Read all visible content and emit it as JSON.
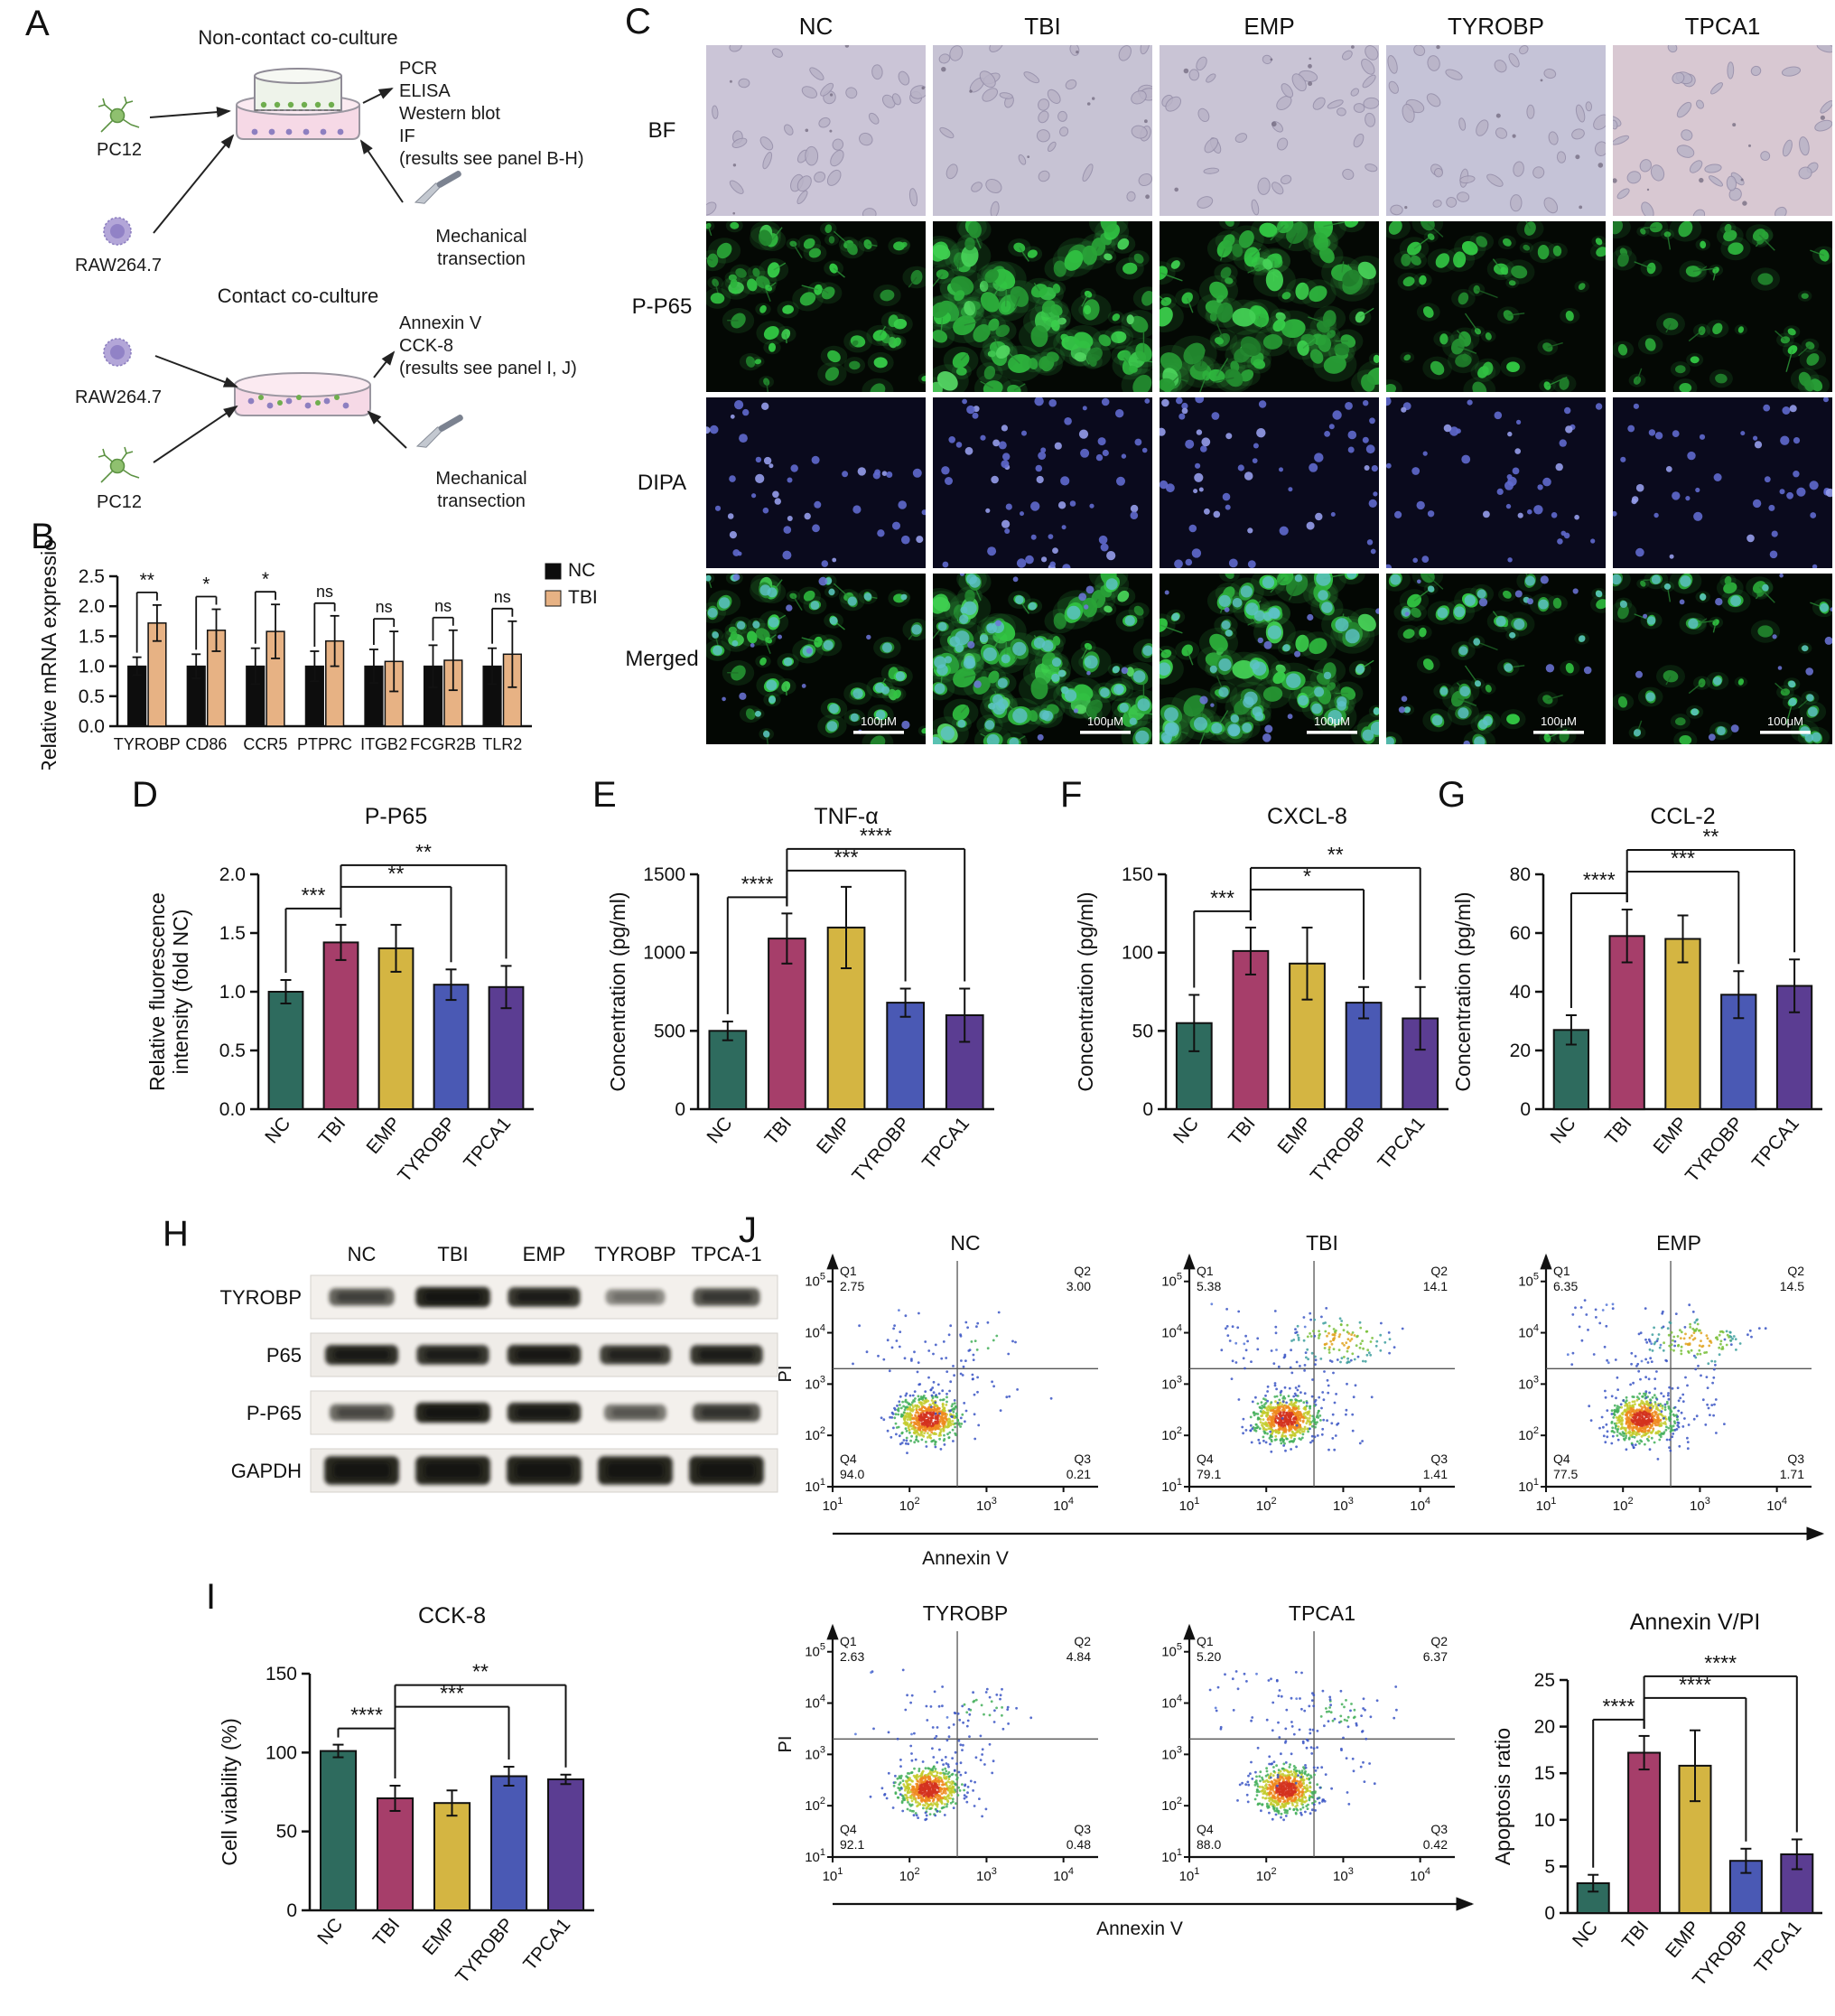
{
  "palette": {
    "group_colors": [
      "#2e6b5e",
      "#a63e6a",
      "#d4b542",
      "#4a59b4",
      "#5b3d92"
    ],
    "nc_bar": "#0d0d0d",
    "tbi_bar": "#e7b284"
  },
  "groups": [
    "NC",
    "TBI",
    "EMP",
    "TYROBP",
    "TPCA1"
  ],
  "panels": {
    "a": {
      "label": "A",
      "top": {
        "title": "Non-contact co-culture",
        "cell_top": "PC12",
        "cell_bottom": "RAW264.7",
        "outputs": [
          "PCR",
          "ELISA",
          "Western blot",
          "IF",
          "(results see panel B-H)"
        ],
        "mechanical": "Mechanical transection"
      },
      "bottom": {
        "title": "Contact co-culture",
        "cell_top": "RAW264.7",
        "cell_bottom": "PC12",
        "outputs": [
          "Annexin V",
          "CCK-8",
          "(results see panel I, J)"
        ],
        "mechanical": "Mechanical transection"
      }
    },
    "b": {
      "label": "B"
    },
    "c": {
      "label": "C",
      "columns": [
        "NC",
        "TBI",
        "EMP",
        "TYROBP",
        "TPCA1"
      ],
      "rows": [
        "BF",
        "P-P65",
        "DIPA",
        "Merged"
      ],
      "scale_bar": "100μM"
    },
    "d": {
      "label": "D"
    },
    "e": {
      "label": "E"
    },
    "f": {
      "label": "F"
    },
    "g": {
      "label": "G"
    },
    "h": {
      "label": "H",
      "lanes": [
        "NC",
        "TBI",
        "EMP",
        "TYROBP",
        "TPCA-1"
      ],
      "bands": [
        {
          "name": "TYROBP",
          "intensities": [
            0.55,
            0.95,
            0.85,
            0.3,
            0.62
          ]
        },
        {
          "name": "P65",
          "intensities": [
            0.88,
            0.85,
            0.9,
            0.78,
            0.85
          ]
        },
        {
          "name": "P-P65",
          "intensities": [
            0.5,
            0.95,
            0.9,
            0.42,
            0.65
          ]
        },
        {
          "name": "GAPDH",
          "intensities": [
            0.95,
            0.95,
            0.95,
            0.95,
            0.95
          ]
        }
      ]
    },
    "i": {
      "label": "I"
    },
    "j": {
      "label": "J",
      "xlabel": "Annexin V",
      "ylabel": "PI",
      "bar_title": "Annexin V/PI"
    }
  },
  "chart_data": [
    {
      "id": "chartB",
      "type": "bar",
      "title": "",
      "ylabel": "Relative mRNA expression",
      "ylim": [
        0,
        2.5
      ],
      "yticks": [
        0,
        0.5,
        1.0,
        1.5,
        2.0,
        2.5
      ],
      "decimals": 1,
      "ml": 92,
      "mr": 97,
      "mt": 42,
      "mb": 48,
      "rotate_cats": false,
      "categories": [
        "TYROBP",
        "CD86",
        "CCR5",
        "PTPRC",
        "ITGB2",
        "FCGR2B",
        "TLR2"
      ],
      "series": [
        {
          "name": "NC",
          "color": "#0d0d0d",
          "values": [
            1.0,
            1.0,
            1.0,
            1.0,
            1.0,
            1.0,
            1.0
          ],
          "errors": [
            0.15,
            0.2,
            0.3,
            0.25,
            0.28,
            0.35,
            0.3
          ]
        },
        {
          "name": "TBI",
          "color": "#e7b284",
          "values": [
            1.72,
            1.6,
            1.58,
            1.42,
            1.08,
            1.1,
            1.2
          ],
          "errors": [
            0.3,
            0.35,
            0.45,
            0.42,
            0.5,
            0.5,
            0.55
          ]
        }
      ],
      "pair_significance": [
        "**",
        "*",
        "*",
        "ns",
        "ns",
        "ns",
        "ns"
      ]
    },
    {
      "id": "chartD",
      "type": "bar",
      "title": "P-P65",
      "ylabel": "Relative fluorescence\nintensity (fold NC)",
      "ylim": [
        0,
        2.0
      ],
      "yticks": [
        0,
        0.5,
        1.0,
        1.5,
        2.0
      ],
      "decimals": 1,
      "ml": 128,
      "rotate_cats": true,
      "categories": [
        "NC",
        "TBI",
        "EMP",
        "TYROBP",
        "TPCA1"
      ],
      "values": [
        1.0,
        1.42,
        1.37,
        1.06,
        1.04
      ],
      "errors": [
        0.1,
        0.15,
        0.2,
        0.13,
        0.18
      ],
      "brackets": [
        {
          "from": 0,
          "to": 1,
          "label": "***"
        },
        {
          "from": 1,
          "to": 3,
          "label": "**"
        },
        {
          "from": 1,
          "to": 4,
          "label": "**"
        }
      ]
    },
    {
      "id": "chartE",
      "type": "bar",
      "title": "TNF-α",
      "ylabel": "Concentration (pg/ml)",
      "ylim": [
        0,
        1500
      ],
      "yticks": [
        0,
        500,
        1000,
        1500
      ],
      "decimals": 0,
      "ml": 105,
      "rotate_cats": true,
      "categories": [
        "NC",
        "TBI",
        "EMP",
        "TYROBP",
        "TPCA1"
      ],
      "values": [
        500,
        1090,
        1160,
        680,
        600
      ],
      "errors": [
        60,
        160,
        260,
        90,
        170
      ],
      "brackets": [
        {
          "from": 0,
          "to": 1,
          "label": "****"
        },
        {
          "from": 1,
          "to": 3,
          "label": "***"
        },
        {
          "from": 1,
          "to": 4,
          "label": "****"
        }
      ]
    },
    {
      "id": "chartF",
      "type": "bar",
      "title": "CXCL-8",
      "ylabel": "Concentration (pg/ml)",
      "ylim": [
        0,
        150
      ],
      "yticks": [
        0,
        50,
        100,
        150
      ],
      "decimals": 0,
      "ml": 105,
      "rotate_cats": true,
      "categories": [
        "NC",
        "TBI",
        "EMP",
        "TYROBP",
        "TPCA1"
      ],
      "values": [
        55,
        101,
        93,
        68,
        58
      ],
      "errors": [
        18,
        15,
        23,
        10,
        20
      ],
      "brackets": [
        {
          "from": 0,
          "to": 1,
          "label": "***"
        },
        {
          "from": 1,
          "to": 3,
          "label": "*"
        },
        {
          "from": 1,
          "to": 4,
          "label": "**"
        }
      ]
    },
    {
      "id": "chartG",
      "type": "bar",
      "title": "CCL-2",
      "ylabel": "Concentration (pg/ml)",
      "ylim": [
        0,
        80
      ],
      "yticks": [
        0,
        20,
        40,
        60,
        80
      ],
      "decimals": 0,
      "ml": 105,
      "rotate_cats": true,
      "categories": [
        "NC",
        "TBI",
        "EMP",
        "TYROBP",
        "TPCA1"
      ],
      "values": [
        27,
        59,
        58,
        39,
        42
      ],
      "errors": [
        5,
        9,
        8,
        8,
        9
      ],
      "brackets": [
        {
          "from": 0,
          "to": 1,
          "label": "****"
        },
        {
          "from": 1,
          "to": 3,
          "label": "***"
        },
        {
          "from": 1,
          "to": 4,
          "label": "**"
        }
      ]
    },
    {
      "id": "chartI",
      "type": "bar",
      "title": "CCK-8",
      "ylabel": "Cell viability (%)",
      "ylim": [
        0,
        150
      ],
      "yticks": [
        0,
        50,
        100,
        150
      ],
      "decimals": 0,
      "ml": 105,
      "rotate_cats": true,
      "categories": [
        "NC",
        "TBI",
        "EMP",
        "TYROBP",
        "TPCA1"
      ],
      "values": [
        101,
        71,
        68,
        85,
        83
      ],
      "errors": [
        4,
        8,
        8,
        6,
        3
      ],
      "brackets": [
        {
          "from": 0,
          "to": 1,
          "label": "****"
        },
        {
          "from": 1,
          "to": 3,
          "label": "***"
        },
        {
          "from": 1,
          "to": 4,
          "label": "**"
        }
      ]
    },
    {
      "id": "chartJbar",
      "type": "bar",
      "title": "Annexin V/PI",
      "ylabel": "Apoptosis ratio",
      "ylim": [
        0,
        25
      ],
      "yticks": [
        0,
        5,
        10,
        15,
        20,
        25
      ],
      "decimals": 0,
      "ml": 88,
      "mr": 14,
      "rotate_cats": true,
      "categories": [
        "NC",
        "TBI",
        "EMP",
        "TYROBP",
        "TPCA1"
      ],
      "values": [
        3.2,
        17.2,
        15.8,
        5.6,
        6.3
      ],
      "errors": [
        0.9,
        1.8,
        3.8,
        1.3,
        1.6
      ],
      "brackets": [
        {
          "from": 0,
          "to": 1,
          "label": "****"
        },
        {
          "from": 1,
          "to": 3,
          "label": "****"
        },
        {
          "from": 1,
          "to": 4,
          "label": "****"
        }
      ]
    },
    {
      "id": "flowNC",
      "type": "flow_scatter",
      "title": "NC",
      "xlabel": "Annexin V",
      "ylabel": "PI",
      "show_ylabel": true,
      "seed": 101,
      "x_exponents": [
        1,
        2,
        3,
        4
      ],
      "y_exponents": [
        1,
        2,
        3,
        4,
        5
      ],
      "quadrants": {
        "q1": {
          "label": "Q1",
          "value": "2.75"
        },
        "q2": {
          "label": "Q2",
          "value": "3.00"
        },
        "q3": {
          "label": "Q3",
          "value": "0.21"
        },
        "q4": {
          "label": "Q4",
          "value": "94.0"
        }
      }
    },
    {
      "id": "flowTBI",
      "type": "flow_scatter",
      "title": "TBI",
      "xlabel": "Annexin V",
      "ylabel": "PI",
      "show_ylabel": false,
      "seed": 202,
      "x_exponents": [
        1,
        2,
        3,
        4
      ],
      "y_exponents": [
        1,
        2,
        3,
        4,
        5
      ],
      "quadrants": {
        "q1": {
          "label": "Q1",
          "value": "5.38"
        },
        "q2": {
          "label": "Q2",
          "value": "14.1"
        },
        "q3": {
          "label": "Q3",
          "value": "1.41"
        },
        "q4": {
          "label": "Q4",
          "value": "79.1"
        }
      }
    },
    {
      "id": "flowEMP",
      "type": "flow_scatter",
      "title": "EMP",
      "xlabel": "Annexin V",
      "ylabel": "PI",
      "show_ylabel": false,
      "seed": 303,
      "x_exponents": [
        1,
        2,
        3,
        4
      ],
      "y_exponents": [
        1,
        2,
        3,
        4,
        5
      ],
      "quadrants": {
        "q1": {
          "label": "Q1",
          "value": "6.35"
        },
        "q2": {
          "label": "Q2",
          "value": "14.5"
        },
        "q3": {
          "label": "Q3",
          "value": "1.71"
        },
        "q4": {
          "label": "Q4",
          "value": "77.5"
        }
      }
    },
    {
      "id": "flowTYROBP",
      "type": "flow_scatter",
      "title": "TYROBP",
      "xlabel": "Annexin V",
      "ylabel": "PI",
      "show_ylabel": true,
      "seed": 404,
      "x_exponents": [
        1,
        2,
        3,
        4
      ],
      "y_exponents": [
        1,
        2,
        3,
        4,
        5
      ],
      "quadrants": {
        "q1": {
          "label": "Q1",
          "value": "2.63"
        },
        "q2": {
          "label": "Q2",
          "value": "4.84"
        },
        "q3": {
          "label": "Q3",
          "value": "0.48"
        },
        "q4": {
          "label": "Q4",
          "value": "92.1"
        }
      }
    },
    {
      "id": "flowTPCA1",
      "type": "flow_scatter",
      "title": "TPCA1",
      "xlabel": "Annexin V",
      "ylabel": "PI",
      "show_ylabel": false,
      "seed": 505,
      "x_exponents": [
        1,
        2,
        3,
        4
      ],
      "y_exponents": [
        1,
        2,
        3,
        4,
        5
      ],
      "quadrants": {
        "q1": {
          "label": "Q1",
          "value": "5.20"
        },
        "q2": {
          "label": "Q2",
          "value": "6.37"
        },
        "q3": {
          "label": "Q3",
          "value": "0.42"
        },
        "q4": {
          "label": "Q4",
          "value": "88.0"
        }
      }
    }
  ]
}
